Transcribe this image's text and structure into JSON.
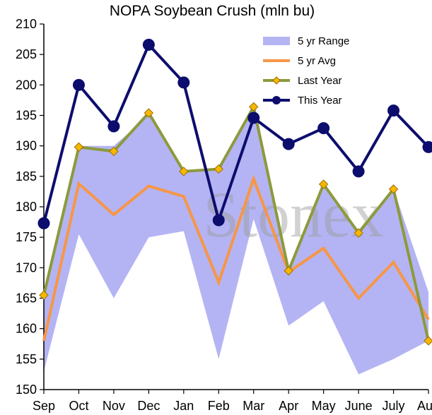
{
  "chart_data": {
    "type": "line",
    "title": "NOPA Soybean Crush (mln bu)",
    "watermark": "Stonex",
    "categories": [
      "Sep",
      "Oct",
      "Nov",
      "Dec",
      "Jan",
      "Feb",
      "Mar",
      "Apr",
      "May",
      "June",
      "July",
      "Aug"
    ],
    "ylim": [
      150,
      210
    ],
    "yticks": [
      150,
      155,
      160,
      165,
      170,
      175,
      180,
      185,
      190,
      195,
      200,
      205,
      210
    ],
    "grid": false,
    "legend_position": "top-right",
    "range": {
      "name": "5 yr Range",
      "color": "#b4b4f4",
      "low": [
        153,
        175.5,
        165,
        175,
        176,
        155,
        178,
        160.5,
        164.5,
        152.5,
        155,
        158
      ],
      "high": [
        166,
        190,
        190,
        195,
        186,
        186,
        196,
        170,
        184,
        176,
        183,
        166
      ]
    },
    "series": [
      {
        "name": "5 yr Avg",
        "color": "#f79646",
        "marker": "none",
        "values": [
          158,
          183.8,
          178.7,
          183.4,
          181.7,
          167.6,
          184.6,
          169.3,
          173.2,
          165,
          170.9,
          161.5
        ]
      },
      {
        "name": "Last Year",
        "color": "#8c9a3b",
        "marker": "diamond",
        "marker_color": "#f5b800",
        "values": [
          165.5,
          189.8,
          189.1,
          195.4,
          185.8,
          186.2,
          196.4,
          169.5,
          183.7,
          175.7,
          182.9,
          158
        ]
      },
      {
        "name": "This Year",
        "color": "#0d0d6e",
        "marker": "circle",
        "values": [
          177.3,
          200,
          193.2,
          206.6,
          200.4,
          177.8,
          194.6,
          190.3,
          192.9,
          185.8,
          195.8,
          189.8
        ]
      }
    ]
  }
}
